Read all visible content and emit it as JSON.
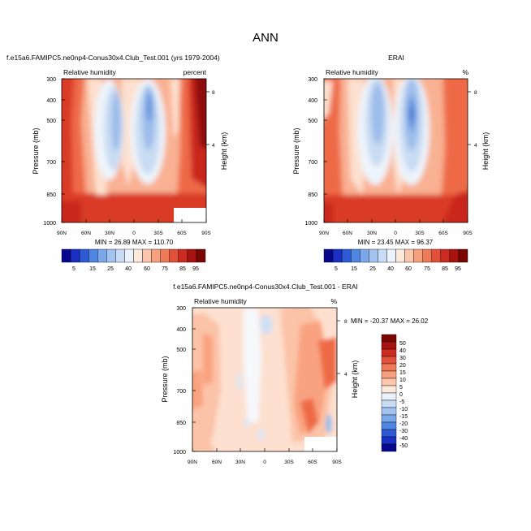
{
  "page_title": "ANN",
  "chart_data": [
    {
      "type": "contour",
      "panel": "test",
      "title": "f.e15a6.FAMIPC5.ne0np4-Conus30x4.Club_Test.001 (yrs 1979-2004)",
      "left_label": "Relative humidity",
      "right_label": "percent",
      "ylabel": "Pressure (mb)",
      "right_axis_label": "Height (km)",
      "x_ticks": [
        "90N",
        "60N",
        "30N",
        "0",
        "30S",
        "60S",
        "90S"
      ],
      "y_ticks": [
        "300",
        "400",
        "500",
        "700",
        "850",
        "1000"
      ],
      "height_ticks": [
        "8",
        "4"
      ],
      "ylim": [
        1000,
        300
      ],
      "stats": "MIN = 26.89  MAX = 110.70",
      "min": 26.89,
      "max": 110.7,
      "colorbar_labels": [
        "5",
        "15",
        "25",
        "40",
        "60",
        "75",
        "85",
        "95"
      ]
    },
    {
      "type": "contour",
      "panel": "reference",
      "title": "ERAI",
      "left_label": "Relative humidity",
      "right_label": "%",
      "ylabel": "Pressure (mb)",
      "right_axis_label": "Height (km)",
      "x_ticks": [
        "90N",
        "60N",
        "30N",
        "0",
        "30S",
        "60S",
        "90S"
      ],
      "y_ticks": [
        "300",
        "400",
        "500",
        "700",
        "850",
        "1000"
      ],
      "height_ticks": [
        "8",
        "4"
      ],
      "ylim": [
        1000,
        300
      ],
      "stats": "MIN = 23.45  MAX = 96.37",
      "min": 23.45,
      "max": 96.37,
      "colorbar_labels": [
        "5",
        "15",
        "25",
        "40",
        "60",
        "75",
        "85",
        "95"
      ]
    },
    {
      "type": "contour",
      "panel": "difference",
      "title": "f.e15a6.FAMIPC5.ne0np4-Conus30x4.Club_Test.001 - ERAI",
      "left_label": "Relative humidity",
      "right_label": "%",
      "ylabel": "Pressure (mb)",
      "right_axis_label": "Height (km)",
      "x_ticks": [
        "90N",
        "60N",
        "30N",
        "0",
        "30S",
        "60S",
        "90S"
      ],
      "y_ticks": [
        "300",
        "400",
        "500",
        "700",
        "850",
        "1000"
      ],
      "height_ticks": [
        "8",
        "4"
      ],
      "ylim": [
        1000,
        300
      ],
      "stats": "MIN = -20.37  MAX = 26.02",
      "min": -20.37,
      "max": 26.02,
      "colorbar_labels": [
        "50",
        "40",
        "30",
        "20",
        "15",
        "10",
        "5",
        "0",
        "-5",
        "-10",
        "-15",
        "-20",
        "-30",
        "-40",
        "-50"
      ]
    }
  ]
}
